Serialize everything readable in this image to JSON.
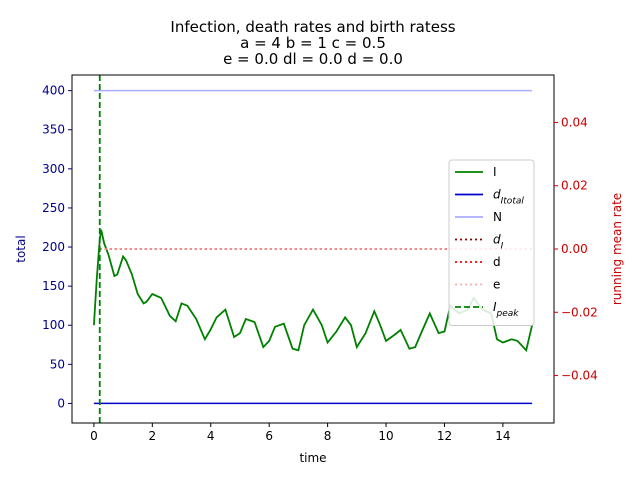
{
  "chart_data": {
    "type": "line",
    "title_lines": [
      "Infection, death rates and birth ratess",
      "a = 4   b = 1   c = 0.5",
      "e = 0.0   dl = 0.0   d = 0.0"
    ],
    "xlabel": "time",
    "ylabel_left": "total",
    "ylabel_right": "running mean rate",
    "xlim": [
      -0.75,
      15.75
    ],
    "ylim_left": [
      -25,
      420
    ],
    "ylim_right": [
      -0.055,
      0.055
    ],
    "xticks": [
      0,
      2,
      4,
      6,
      8,
      10,
      12,
      14
    ],
    "yticks_left": [
      0,
      50,
      100,
      150,
      200,
      250,
      300,
      350,
      400
    ],
    "yticks_right": [
      -0.04,
      -0.02,
      0.0,
      0.02,
      0.04
    ],
    "ytick_right_labels": [
      "−0.04",
      "−0.02",
      "0.00",
      "0.02",
      "0.04"
    ],
    "colors": {
      "left_axis": "#00008b",
      "right_axis": "#cc0000"
    },
    "series": [
      {
        "name": "I",
        "axis": "left",
        "color": "#008000",
        "style": "solid",
        "x": [
          0,
          0.1,
          0.2,
          0.25,
          0.35,
          0.5,
          0.7,
          0.8,
          1.0,
          1.1,
          1.3,
          1.5,
          1.7,
          1.8,
          2.0,
          2.3,
          2.6,
          2.8,
          3.0,
          3.2,
          3.5,
          3.8,
          4.0,
          4.2,
          4.5,
          4.8,
          5.0,
          5.2,
          5.5,
          5.8,
          6.0,
          6.2,
          6.5,
          6.8,
          7.0,
          7.2,
          7.5,
          7.8,
          8.0,
          8.3,
          8.6,
          8.8,
          9.0,
          9.3,
          9.6,
          9.8,
          10.0,
          10.3,
          10.5,
          10.8,
          11.0,
          11.2,
          11.5,
          11.8,
          12.0,
          12.2,
          12.5,
          12.8,
          13.0,
          13.3,
          13.6,
          13.8,
          14.0,
          14.3,
          14.5,
          14.8,
          15.0
        ],
        "y": [
          100,
          160,
          210,
          222,
          205,
          190,
          163,
          165,
          188,
          183,
          165,
          140,
          128,
          130,
          140,
          135,
          112,
          105,
          128,
          125,
          108,
          82,
          95,
          110,
          120,
          85,
          90,
          108,
          104,
          72,
          80,
          98,
          102,
          70,
          68,
          100,
          120,
          100,
          78,
          92,
          110,
          100,
          72,
          90,
          118,
          100,
          80,
          88,
          94,
          70,
          72,
          90,
          115,
          90,
          92,
          125,
          115,
          120,
          135,
          120,
          115,
          82,
          78,
          82,
          80,
          68,
          100
        ]
      },
      {
        "name": "d_Itotal",
        "axis": "left",
        "color": "#0000cc",
        "style": "solid",
        "x": [
          0,
          15
        ],
        "y": [
          0,
          0
        ]
      },
      {
        "name": "N",
        "axis": "left",
        "color": "#aaaaff",
        "style": "solid",
        "x": [
          0,
          15
        ],
        "y": [
          400,
          400
        ]
      },
      {
        "name": "d_I",
        "axis": "right",
        "color": "#8b0000",
        "style": "dotted",
        "x": [
          0.2,
          15
        ],
        "y": [
          0,
          0
        ]
      },
      {
        "name": "d",
        "axis": "right",
        "color": "#ff0000",
        "style": "dotted",
        "x": [
          0.2,
          15
        ],
        "y": [
          0,
          0
        ]
      },
      {
        "name": "e",
        "axis": "right",
        "color": "#ffaaaa",
        "style": "dotted",
        "x": [
          0.2,
          15
        ],
        "y": [
          0,
          0
        ]
      },
      {
        "name": "I_peak",
        "axis": "left",
        "color": "#008000",
        "style": "dashed",
        "vline_x": 0.2
      }
    ],
    "legend": {
      "placement": "center-right",
      "entries": [
        {
          "label": "I",
          "color": "#008000",
          "style": "solid"
        },
        {
          "label": "d",
          "sub": "Itotal",
          "color": "#0000cc",
          "style": "solid"
        },
        {
          "label": "N",
          "color": "#aaaaff",
          "style": "solid"
        },
        {
          "label": "d",
          "sub": "I",
          "color": "#8b0000",
          "style": "dotted"
        },
        {
          "label": "d",
          "color": "#ff0000",
          "style": "dotted"
        },
        {
          "label": "e",
          "color": "#ffaaaa",
          "style": "dotted"
        },
        {
          "label": "I",
          "sub": "peak",
          "color": "#008000",
          "style": "dashed"
        }
      ]
    },
    "grid": false
  }
}
